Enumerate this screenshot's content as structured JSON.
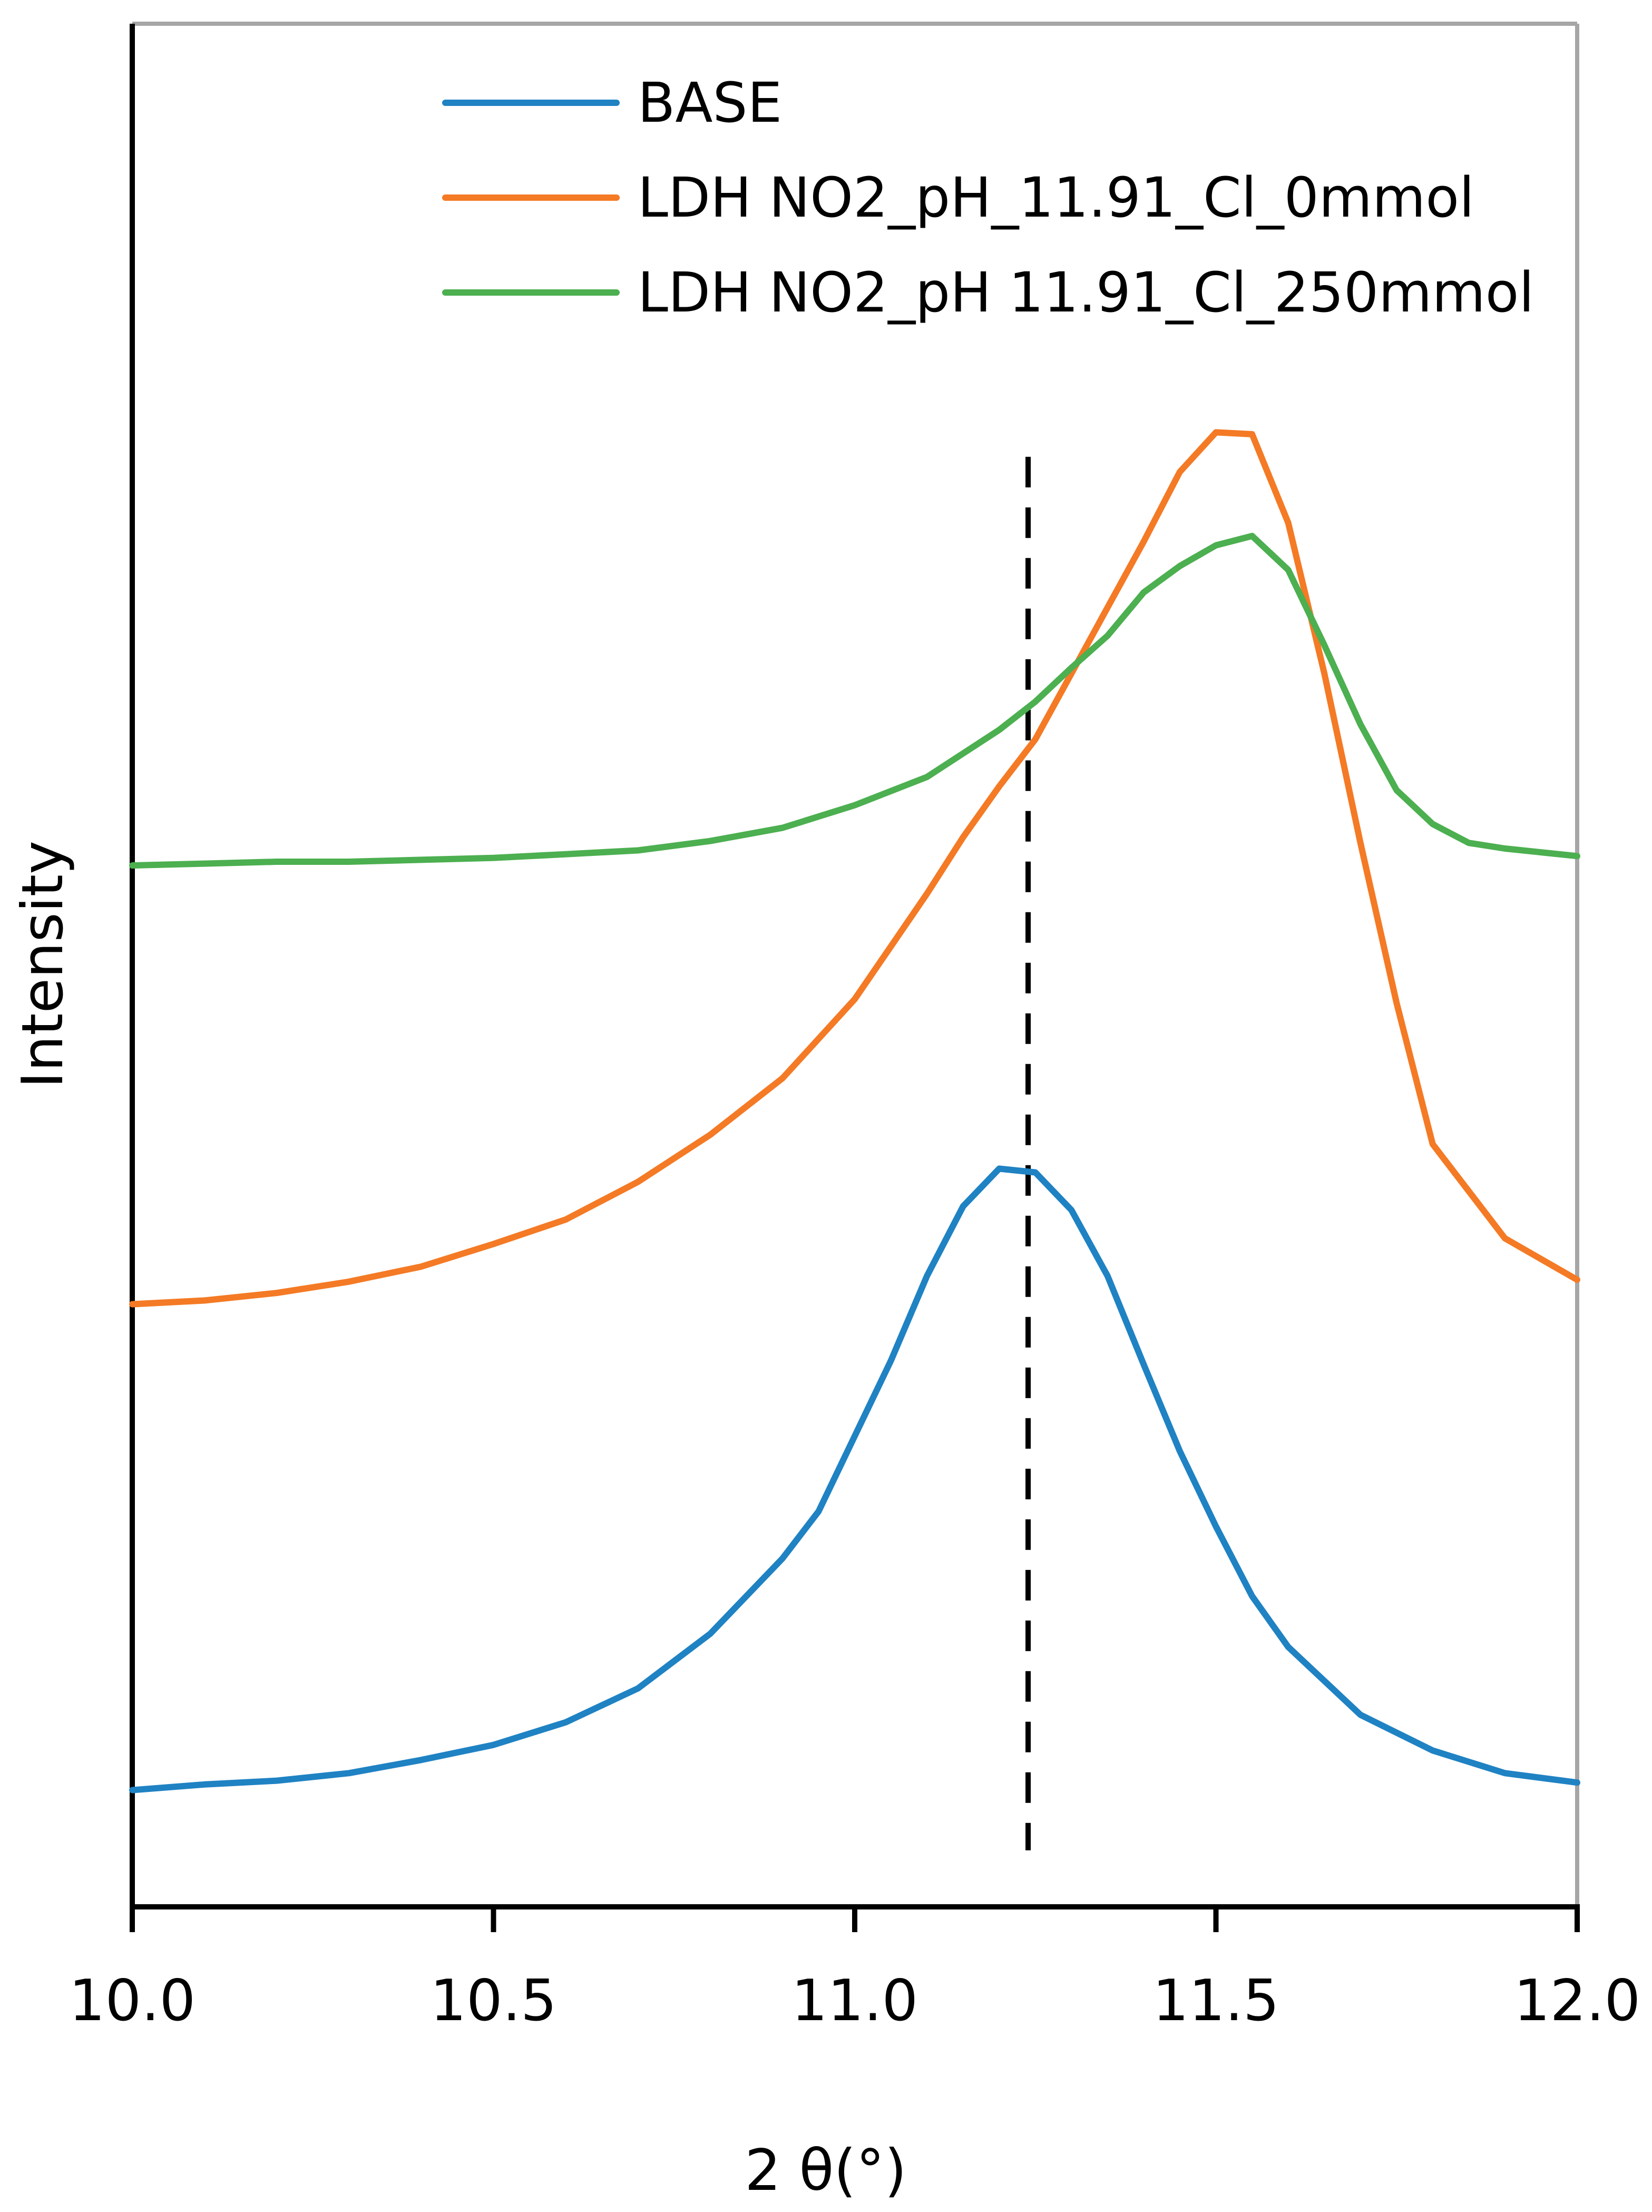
{
  "chart_data": {
    "type": "line",
    "title": "",
    "xlabel": "2 θ(°)",
    "ylabel": "Intensity",
    "xlim": [
      10.0,
      12.0
    ],
    "ylim": [
      0,
      100
    ],
    "x_ticks": [
      10.0,
      10.5,
      11.0,
      11.5,
      12.0
    ],
    "x_tick_labels": [
      "10.0",
      "10.5",
      "11.0",
      "11.5",
      "12.0"
    ],
    "y_ticks_shown": false,
    "grid": false,
    "legend_position": "top-center",
    "reference_line": {
      "x": 11.24,
      "style": "dashed",
      "y_from": 3,
      "y_to": 77
    },
    "series": [
      {
        "name": "BASE",
        "color": "#1f82c3",
        "x": [
          10.0,
          10.1,
          10.2,
          10.3,
          10.4,
          10.5,
          10.6,
          10.7,
          10.8,
          10.9,
          10.95,
          11.0,
          11.05,
          11.1,
          11.15,
          11.2,
          11.25,
          11.3,
          11.35,
          11.4,
          11.45,
          11.5,
          11.55,
          11.6,
          11.7,
          11.8,
          11.9,
          12.0
        ],
        "values": [
          6.2,
          6.5,
          6.7,
          7.1,
          7.8,
          8.6,
          9.8,
          11.6,
          14.5,
          18.5,
          21.0,
          25.0,
          29.0,
          33.5,
          37.2,
          39.2,
          39.0,
          37.0,
          33.5,
          28.8,
          24.2,
          20.2,
          16.5,
          13.8,
          10.2,
          8.3,
          7.1,
          6.6
        ]
      },
      {
        "name": "LDH NO2_pH_11.91_Cl_0mmol",
        "color": "#f47a25",
        "x": [
          10.0,
          10.1,
          10.2,
          10.3,
          10.4,
          10.5,
          10.6,
          10.7,
          10.8,
          10.9,
          11.0,
          11.05,
          11.1,
          11.15,
          11.2,
          11.25,
          11.3,
          11.35,
          11.4,
          11.45,
          11.5,
          11.55,
          11.6,
          11.65,
          11.7,
          11.75,
          11.8,
          11.9,
          12.0
        ],
        "values": [
          32.0,
          32.2,
          32.6,
          33.2,
          34.0,
          35.2,
          36.5,
          38.5,
          41.0,
          44.0,
          48.2,
          51.0,
          53.8,
          56.8,
          59.5,
          62.0,
          65.5,
          69.0,
          72.5,
          76.2,
          78.3,
          78.2,
          73.5,
          65.5,
          56.5,
          48.0,
          40.5,
          35.5,
          33.3
        ]
      },
      {
        "name": "LDH NO2_pH 11.91_Cl_250mmol",
        "color": "#4caf50",
        "x": [
          10.0,
          10.1,
          10.2,
          10.3,
          10.4,
          10.5,
          10.6,
          10.7,
          10.8,
          10.9,
          11.0,
          11.1,
          11.2,
          11.25,
          11.3,
          11.35,
          11.4,
          11.45,
          11.5,
          11.55,
          11.6,
          11.65,
          11.7,
          11.75,
          11.8,
          11.85,
          11.9,
          12.0
        ],
        "values": [
          55.3,
          55.4,
          55.5,
          55.5,
          55.6,
          55.7,
          55.9,
          56.1,
          56.6,
          57.3,
          58.5,
          60.0,
          62.5,
          64.0,
          65.8,
          67.5,
          69.8,
          71.2,
          72.3,
          72.8,
          71.0,
          67.0,
          62.8,
          59.3,
          57.5,
          56.5,
          56.2,
          55.8
        ]
      }
    ]
  }
}
